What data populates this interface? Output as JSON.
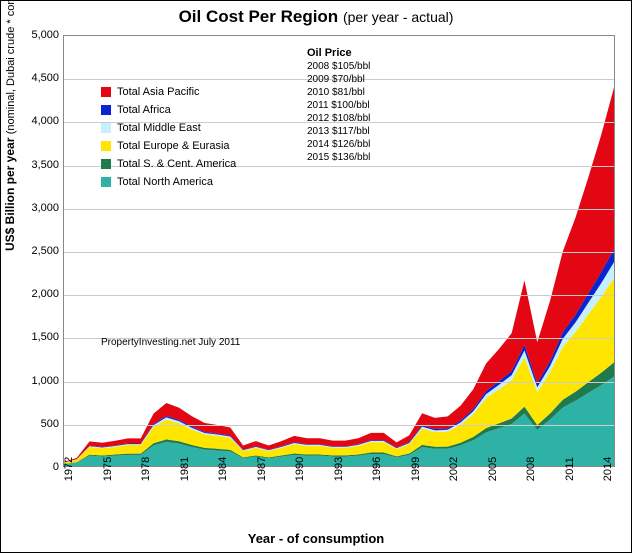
{
  "title_main": "Oil Cost Per Region",
  "title_sub": "(per year - actual)",
  "y_label_main": "US$ Billion per year",
  "y_label_sub": "(nominal, Dubai crude * consumption)",
  "x_label": "Year - of consumption",
  "credit": "PropertyInvesting.net  July 2011",
  "chart": {
    "type": "stacked-area",
    "xlim": [
      1972,
      2015
    ],
    "ylim": [
      0,
      5000
    ],
    "ytick_step": 500,
    "xtick_step": 3,
    "background_color": "#ffffff",
    "grid_color": "#cccccc",
    "years": [
      1972,
      1973,
      1974,
      1975,
      1976,
      1977,
      1978,
      1979,
      1980,
      1981,
      1982,
      1983,
      1984,
      1985,
      1986,
      1987,
      1988,
      1989,
      1990,
      1991,
      1992,
      1993,
      1994,
      1995,
      1996,
      1997,
      1998,
      1999,
      2000,
      2001,
      2002,
      2003,
      2004,
      2005,
      2006,
      2007,
      2008,
      2009,
      2010,
      2011,
      2012,
      2013,
      2014,
      2015
    ],
    "series": [
      {
        "name": "Total North America",
        "color": "#2eb2a6",
        "values": [
          20,
          40,
          120,
          110,
          120,
          130,
          130,
          240,
          280,
          260,
          220,
          190,
          180,
          170,
          90,
          110,
          90,
          110,
          130,
          120,
          120,
          110,
          110,
          120,
          140,
          140,
          100,
          130,
          220,
          200,
          200,
          240,
          300,
          390,
          440,
          490,
          610,
          420,
          540,
          680,
          760,
          850,
          940,
          1040
        ]
      },
      {
        "name": "Total S. & Cent. America",
        "color": "#1f7a4d",
        "values": [
          3,
          5,
          12,
          12,
          13,
          14,
          14,
          25,
          30,
          28,
          24,
          21,
          20,
          18,
          10,
          12,
          10,
          12,
          15,
          14,
          14,
          13,
          13,
          14,
          17,
          17,
          12,
          16,
          26,
          24,
          25,
          30,
          38,
          50,
          55,
          62,
          80,
          55,
          70,
          90,
          105,
          125,
          145,
          165
        ]
      },
      {
        "name": "Total Europe & Eurasia",
        "color": "#ffe600",
        "values": [
          15,
          30,
          90,
          85,
          90,
          100,
          100,
          190,
          230,
          210,
          180,
          155,
          150,
          140,
          75,
          90,
          75,
          90,
          110,
          100,
          100,
          90,
          90,
          100,
          120,
          120,
          85,
          110,
          190,
          170,
          175,
          210,
          265,
          350,
          395,
          445,
          575,
          385,
          480,
          615,
          695,
          790,
          880,
          980
        ]
      },
      {
        "name": "Total Middle East",
        "color": "#c6f0ff",
        "values": [
          2,
          3,
          8,
          8,
          9,
          10,
          10,
          20,
          25,
          23,
          20,
          17,
          16,
          15,
          8,
          10,
          8,
          10,
          12,
          11,
          11,
          10,
          10,
          11,
          13,
          13,
          10,
          12,
          22,
          20,
          21,
          26,
          34,
          46,
          53,
          60,
          80,
          55,
          72,
          94,
          112,
          135,
          160,
          185
        ]
      },
      {
        "name": "Total Africa",
        "color": "#0b24d1",
        "values": [
          1,
          2,
          6,
          6,
          6,
          7,
          7,
          14,
          17,
          16,
          14,
          12,
          11,
          10,
          6,
          7,
          6,
          7,
          9,
          8,
          8,
          7,
          7,
          8,
          10,
          10,
          7,
          9,
          16,
          15,
          16,
          20,
          26,
          36,
          41,
          48,
          64,
          44,
          58,
          76,
          91,
          109,
          130,
          150
        ]
      },
      {
        "name": "Total Asia Pacific",
        "color": "#e30613",
        "values": [
          8,
          15,
          50,
          50,
          55,
          60,
          60,
          120,
          150,
          140,
          120,
          105,
          100,
          95,
          50,
          60,
          50,
          60,
          75,
          70,
          70,
          65,
          65,
          70,
          85,
          85,
          60,
          80,
          140,
          130,
          140,
          175,
          230,
          320,
          375,
          440,
          750,
          480,
          700,
          940,
          1130,
          1350,
          1595,
          1880
        ]
      }
    ],
    "title_fontsize": 17,
    "label_fontsize": 12,
    "tick_fontsize": 11
  },
  "legend_order": [
    "Total Asia Pacific",
    "Total Africa",
    "Total Middle East",
    "Total Europe & Eurasia",
    "Total S. & Cent. America",
    "Total North America"
  ],
  "oil_prices": {
    "header": "Oil Price",
    "rows": [
      {
        "year": "2008",
        "price": "$105/bbl"
      },
      {
        "year": "2009",
        "price": "$70/bbl"
      },
      {
        "year": "2010",
        "price": "$81/bbl"
      },
      {
        "year": "2011",
        "price": "$100/bbl"
      },
      {
        "year": "2012",
        "price": "$108/bbl"
      },
      {
        "year": "2013",
        "price": "$117/bbl"
      },
      {
        "year": "2014",
        "price": "$126/bbl"
      },
      {
        "year": "2015",
        "price": "$136/bbl"
      }
    ]
  }
}
